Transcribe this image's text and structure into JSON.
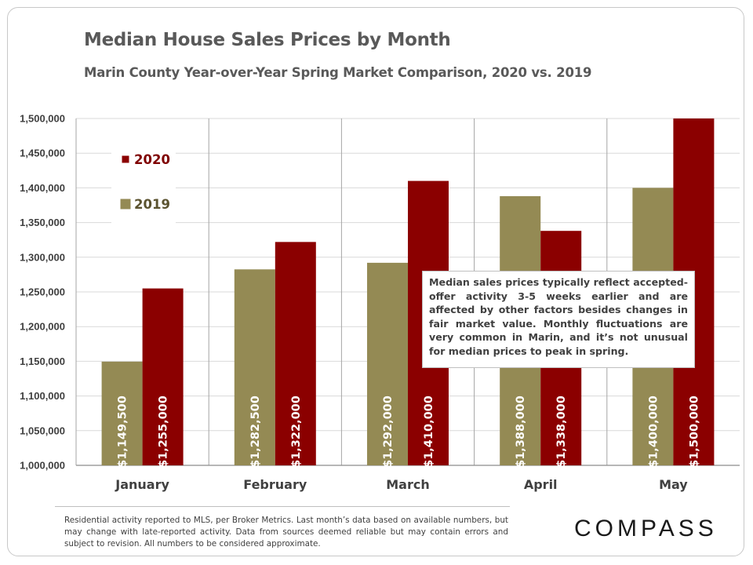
{
  "title": "Median House Sales Prices by Month",
  "subtitle": "Marin County Year-over-Year Spring Market Comparison,  2020 vs. 2019",
  "note": "Median sales prices typically reflect accepted-offer activity 3-5 weeks earlier and are affected by other factors besides changes in fair market value. Monthly fluctuations are very common in Marin, and it’s not unusual for median prices to peak in spring.",
  "footnote": "Residential activity reported to MLS, per Broker Metrics. Last month’s data based on available numbers, but may change with late-reported activity. Data from sources deemed reliable but may contain errors and subject to revision. All numbers to be considered approximate.",
  "logo": "COMPASS",
  "colors": {
    "s2019": "#948a54",
    "s2020": "#8b0000",
    "grid": "#d9d9d9",
    "text": "#404040"
  },
  "chart_data": {
    "type": "bar",
    "title": "Median House Sales Prices by Month",
    "categories": [
      "January",
      "February",
      "March",
      "April",
      "May"
    ],
    "series": [
      {
        "name": "2019",
        "values": [
          1149500,
          1282500,
          1292000,
          1388000,
          1400000
        ],
        "labels": [
          "$1,149,500",
          "$1,282,500",
          "$1,292,000",
          "$1,388,000",
          "$1,400,000"
        ]
      },
      {
        "name": "2020",
        "values": [
          1255000,
          1322000,
          1410000,
          1338000,
          1500000
        ],
        "labels": [
          "$1,255,000",
          "$1,322,000",
          "$1,410,000",
          "$1,338,000",
          "$1,500,000"
        ]
      }
    ],
    "ylim": [
      1000000,
      1500000
    ],
    "yticks": [
      1000000,
      1050000,
      1100000,
      1150000,
      1200000,
      1250000,
      1300000,
      1350000,
      1400000,
      1450000,
      1500000
    ],
    "ytick_labels": [
      "1,000,000",
      "1,050,000",
      "1,100,000",
      "1,150,000",
      "1,200,000",
      "1,250,000",
      "1,300,000",
      "1,350,000",
      "1,400,000",
      "1,450,000",
      "1,500,000"
    ],
    "legend": [
      "2020",
      "2019"
    ],
    "legend_position": "top-left",
    "grid": true
  }
}
